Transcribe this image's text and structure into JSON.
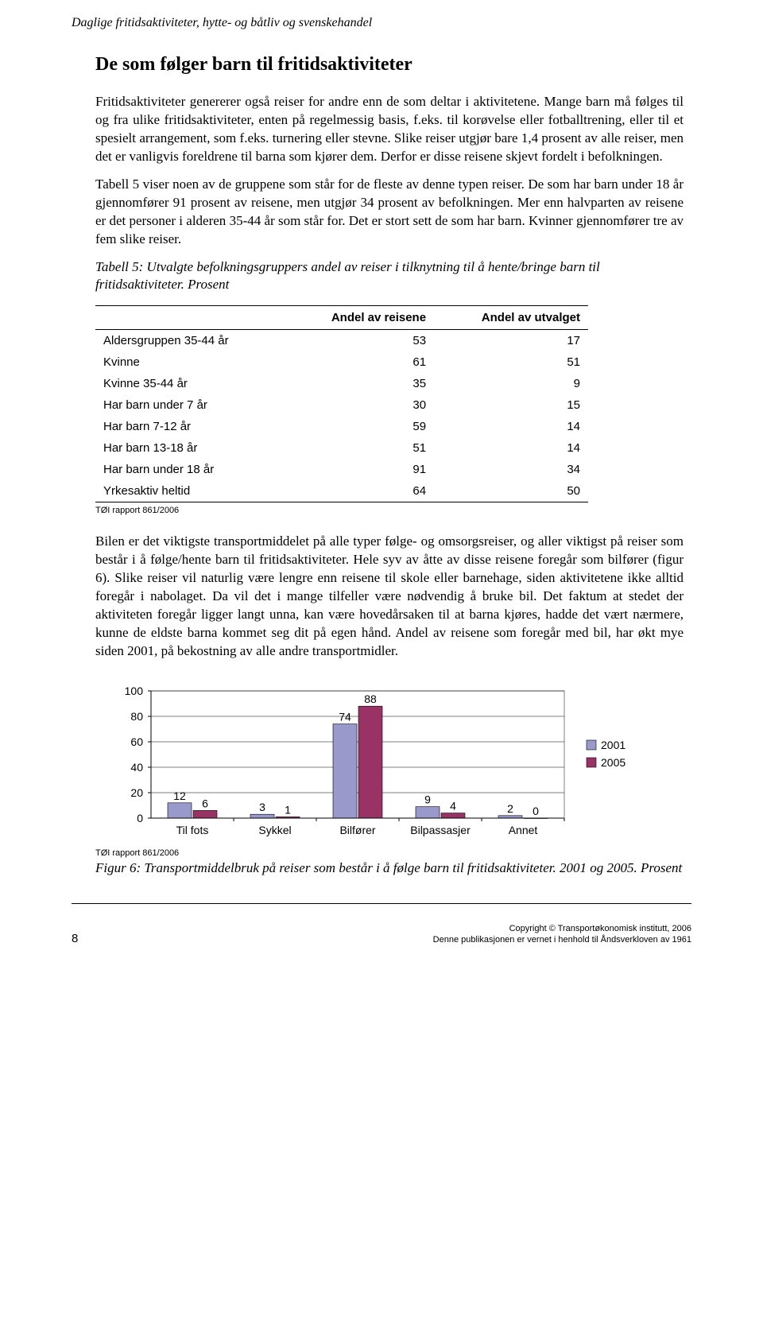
{
  "running_header": "Daglige fritidsaktiviteter, hytte- og båtliv og svenskehandel",
  "section_title": "De som følger barn til fritidsaktiviteter",
  "para1": "Fritidsaktiviteter genererer også reiser for andre enn de som deltar i aktivitetene. Mange barn må følges til og fra ulike fritidsaktiviteter, enten på regelmessig basis, f.eks. til korøvelse eller fotballtrening, eller til et spesielt arrangement, som f.eks. turnering eller stevne. Slike reiser utgjør bare 1,4 prosent av alle reiser, men det er vanligvis foreldrene til barna som kjører dem. Derfor er disse reisene skjevt fordelt i befolkningen.",
  "para2": "Tabell 5 viser noen av de gruppene som står for de fleste av denne typen reiser. De som har barn under 18 år gjennomfører 91 prosent av reisene, men utgjør 34 prosent av befolkningen. Mer enn halvparten av reisene er det personer i alderen 35-44 år som står for. Det er stort sett de som har barn. Kvinner gjennomfører tre av fem slike reiser.",
  "table5_caption": "Tabell 5: Utvalgte befolkningsgruppers andel av reiser i tilknytning til å hente/bringe barn til fritidsaktiviteter. Prosent",
  "table5": {
    "headers": [
      "",
      "Andel av reisene",
      "Andel av utvalget"
    ],
    "rows": [
      [
        "Aldersgruppen 35-44 år",
        "53",
        "17"
      ],
      [
        "Kvinne",
        "61",
        "51"
      ],
      [
        "Kvinne 35-44 år",
        "35",
        "9"
      ],
      [
        "Har barn under 7 år",
        "30",
        "15"
      ],
      [
        "Har barn 7-12 år",
        "59",
        "14"
      ],
      [
        "Har barn 13-18 år",
        "51",
        "14"
      ],
      [
        "Har barn under 18 år",
        "91",
        "34"
      ],
      [
        "Yrkesaktiv heltid",
        "64",
        "50"
      ]
    ]
  },
  "source_note": "TØI rapport 861/2006",
  "para3": "Bilen er det viktigste transportmiddelet på alle typer følge- og omsorgsreiser, og aller viktigst på reiser som består i å følge/hente barn til fritidsaktiviteter. Hele syv av åtte av disse reisene foregår som bilfører (figur 6). Slike reiser vil naturlig være lengre enn reisene til skole eller barnehage, siden aktivitetene ikke alltid foregår i nabolaget. Da vil det i mange tilfeller være nødvendig å bruke bil. Det faktum at stedet der aktiviteten foregår ligger langt unna, kan være hovedårsaken til at barna kjøres, hadde det vært nærmere, kunne de eldste barna kommet seg dit på egen hånd. Andel av reisene som foregår med bil, har økt mye siden 2001, på bekostning av alle andre transportmidler.",
  "chart": {
    "type": "bar",
    "categories": [
      "Til fots",
      "Sykkel",
      "Bilfører",
      "Bilpassasjer",
      "Annet"
    ],
    "series": [
      {
        "name": "2001",
        "color": "#9999cc",
        "values": [
          12,
          3,
          74,
          9,
          2
        ]
      },
      {
        "name": "2005",
        "color": "#993366",
        "values": [
          6,
          1,
          88,
          4,
          0
        ]
      }
    ],
    "y_ticks": [
      0,
      20,
      40,
      60,
      80,
      100
    ],
    "grid_color": "#000000",
    "background": "#ffffff",
    "plot_border": "#808080",
    "bar_border": "#000000"
  },
  "fig6_caption": "Figur 6: Transportmiddelbruk på reiser som består i å følge barn til fritidsaktiviteter. 2001 og 2005. Prosent",
  "page_number": "8",
  "copyright1": "Copyright © Transportøkonomisk institutt, 2006",
  "copyright2": "Denne publikasjonen er vernet i henhold til Åndsverkloven av 1961"
}
